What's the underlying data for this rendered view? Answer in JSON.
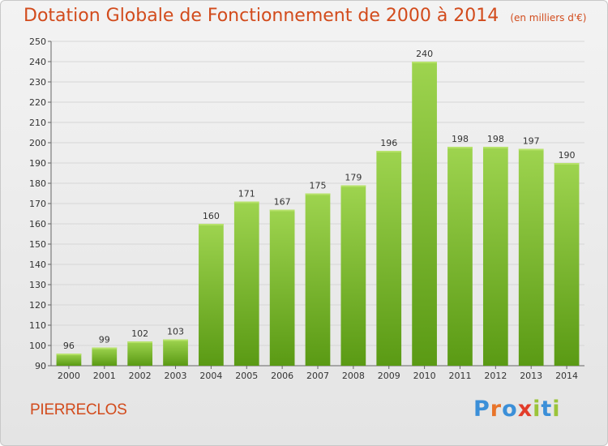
{
  "title": "Dotation Globale de Fonctionnement de 2000 à 2014",
  "subtitle": "(en milliers d'€)",
  "commune": "PIERRECLOS",
  "logo": {
    "text": "Proxiti",
    "letters": [
      "P",
      "r",
      "o",
      "x",
      "i",
      "t",
      "i"
    ],
    "colors": [
      "#3b8fd8",
      "#e8742a",
      "#3b8fd8",
      "#e23c2a",
      "#9bc43a",
      "#3b8fd8",
      "#9bc43a"
    ]
  },
  "colors": {
    "bar_top": "#9ed44f",
    "bar_bottom": "#5a9a14",
    "title": "#d24b1c",
    "grid": "#d6d6d6"
  },
  "chart_data": {
    "type": "bar",
    "title": "Dotation Globale de Fonctionnement de 2000 à 2014",
    "subtitle": "(en milliers d'€)",
    "categories": [
      "2000",
      "2001",
      "2002",
      "2003",
      "2004",
      "2005",
      "2006",
      "2007",
      "2008",
      "2009",
      "2010",
      "2011",
      "2012",
      "2013",
      "2014"
    ],
    "values": [
      96,
      99,
      102,
      103,
      160,
      171,
      167,
      175,
      179,
      196,
      240,
      198,
      198,
      197,
      190
    ],
    "ylim": [
      90,
      250
    ],
    "yticks": [
      90,
      100,
      110,
      120,
      130,
      140,
      150,
      160,
      170,
      180,
      190,
      200,
      210,
      220,
      230,
      240,
      250
    ],
    "ytick_labels": [
      "90",
      "100",
      "110",
      "120",
      "130",
      "140",
      "150",
      "160",
      "170",
      "180",
      "190",
      "200",
      "210",
      "220",
      "230",
      "240",
      "250"
    ],
    "grid": true,
    "data_labels": true
  }
}
